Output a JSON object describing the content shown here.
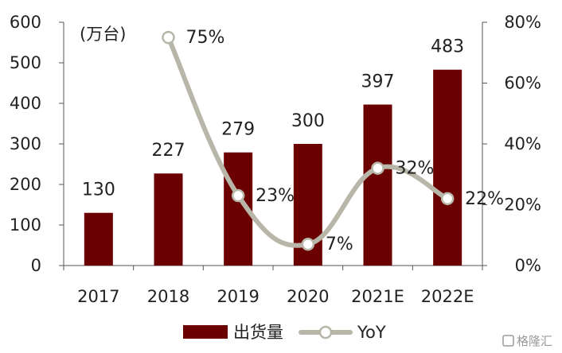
{
  "chart_data": {
    "type": "bar",
    "unit_label": "(万台)",
    "categories": [
      "2017",
      "2018",
      "2019",
      "2020",
      "2021E",
      "2022E"
    ],
    "series": [
      {
        "name": "出货量",
        "type": "bar",
        "axis": "left",
        "color": "#6B0000",
        "values": [
          130,
          227,
          279,
          300,
          397,
          483
        ],
        "labels": [
          "130",
          "227",
          "279",
          "300",
          "397",
          "483"
        ]
      },
      {
        "name": "YoY",
        "type": "line",
        "axis": "right",
        "color": "#B8B6A8",
        "values": [
          null,
          75,
          23,
          7,
          32,
          22
        ],
        "labels": [
          "",
          "75%",
          "23%",
          "7%",
          "32%",
          "22%"
        ]
      }
    ],
    "y_left": {
      "min": 0,
      "max": 600,
      "ticks": [
        "0",
        "100",
        "200",
        "300",
        "400",
        "500",
        "600"
      ]
    },
    "y_right": {
      "min": 0,
      "max": 80,
      "ticks": [
        "0%",
        "20%",
        "40%",
        "60%",
        "80%"
      ]
    },
    "legend_position": "bottom",
    "grid": false
  },
  "watermark": {
    "text": "格隆汇"
  }
}
